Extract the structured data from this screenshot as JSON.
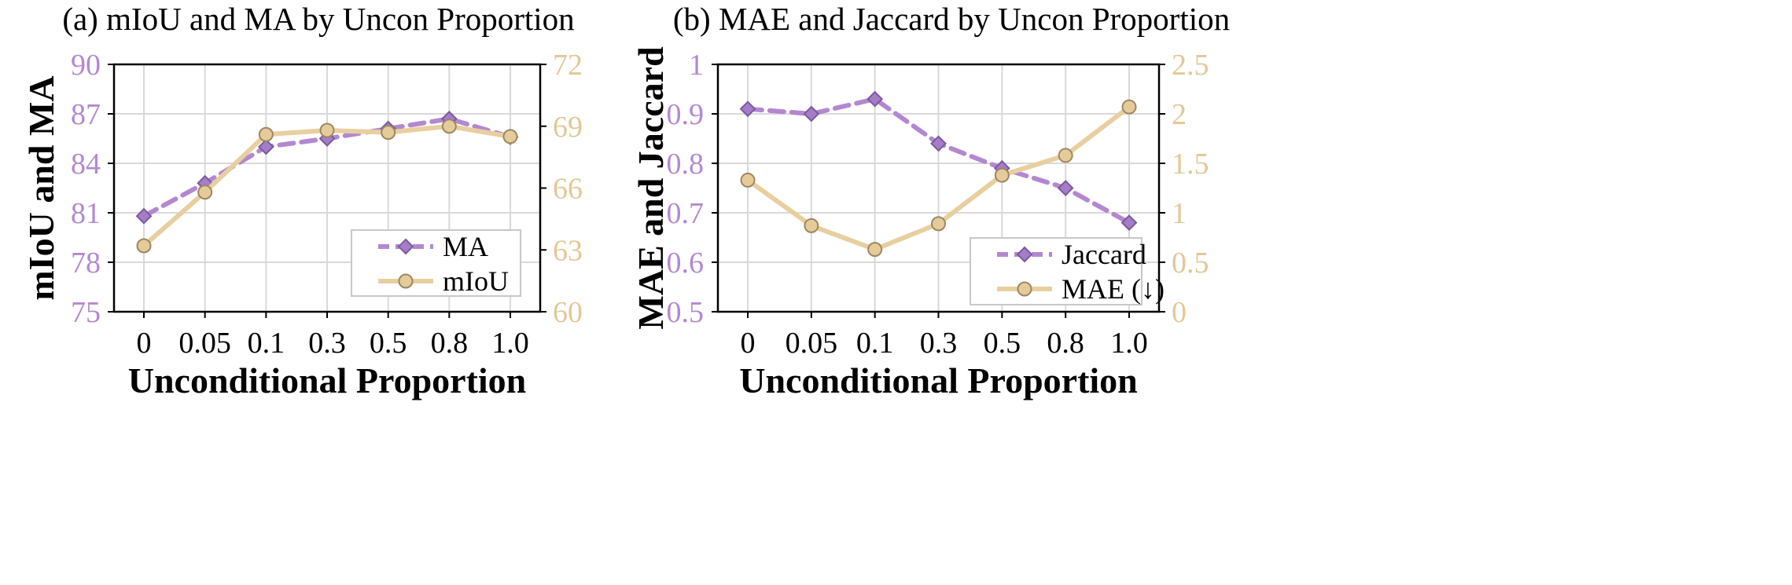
{
  "colors": {
    "purple": "#B388D0",
    "purple_marker": "#A47CC8",
    "purple_edge": "#7C5A9E",
    "tan": "#E8CFA0",
    "tan_marker": "#E6CB9A",
    "tan_edge": "#9C8762",
    "left_tick": "#B388D0",
    "right_tick": "#E2C896",
    "grid": "#D9D9D9"
  },
  "chart_data": [
    {
      "type": "line",
      "title": "(a) mIoU and MA by Uncon Proportion",
      "xlabel": "Unconditional Proportion",
      "ylabel": "mIoU and MA",
      "categories": [
        "0",
        "0.05",
        "0.1",
        "0.3",
        "0.5",
        "0.8",
        "1.0"
      ],
      "ylim": [
        75,
        90
      ],
      "yticks": [
        "75",
        "78",
        "81",
        "84",
        "87",
        "90"
      ],
      "ylim_right": [
        60,
        72
      ],
      "yticks_right": [
        "60",
        "63",
        "66",
        "69",
        "72"
      ],
      "grid": true,
      "legend_position": "lower-right",
      "series": [
        {
          "name": "MA",
          "axis": "left",
          "style": "dashed",
          "marker": "diamond",
          "color": "purple",
          "values": [
            80.8,
            82.8,
            85.0,
            85.5,
            86.1,
            86.7,
            85.6
          ]
        },
        {
          "name": "mIoU",
          "axis": "right",
          "style": "solid",
          "marker": "circle",
          "color": "tan",
          "values": [
            63.2,
            65.8,
            68.6,
            68.8,
            68.7,
            69.0,
            68.5
          ]
        }
      ]
    },
    {
      "type": "line",
      "title": "(b) MAE and Jaccard by Uncon Proportion",
      "xlabel": "Unconditional Proportion",
      "ylabel": "MAE and Jaccard",
      "categories": [
        "0",
        "0.05",
        "0.1",
        "0.3",
        "0.5",
        "0.8",
        "1.0"
      ],
      "ylim": [
        0.5,
        1
      ],
      "yticks": [
        "0.5",
        "0.6",
        "0.7",
        "0.8",
        "0.9",
        "1"
      ],
      "ylim_right": [
        0,
        2.5
      ],
      "yticks_right": [
        "0",
        "0.5",
        "1",
        "1.5",
        "2",
        "2.5"
      ],
      "grid": true,
      "legend_position": "lower-right",
      "series": [
        {
          "name": "Jaccard",
          "axis": "left",
          "style": "dashed",
          "marker": "diamond",
          "color": "purple",
          "values": [
            0.91,
            0.9,
            0.93,
            0.84,
            0.79,
            0.75,
            0.68
          ]
        },
        {
          "name": "MAE (↓)",
          "axis": "right",
          "style": "solid",
          "marker": "circle",
          "color": "tan",
          "values": [
            1.33,
            0.87,
            0.63,
            0.89,
            1.38,
            1.58,
            2.07
          ]
        }
      ]
    }
  ]
}
